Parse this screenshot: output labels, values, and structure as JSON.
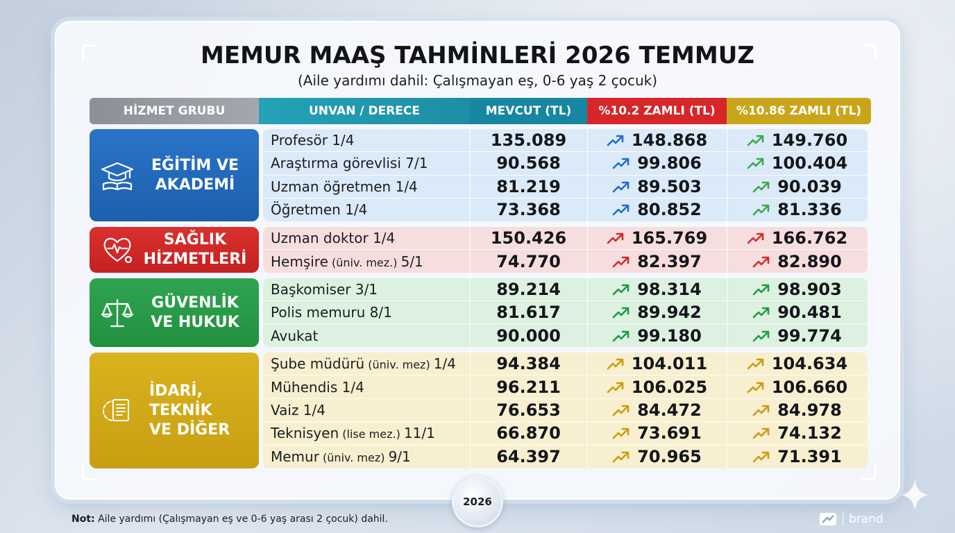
{
  "title": "MEMUR MAAŞ TAHMİNLERİ 2026 TEMMUZ",
  "subtitle": "(Aile yardımı dahil: Çalışmayan eş, 0-6 yaş 2 çocuk)",
  "headers": {
    "group": "HİZMET GRUBU",
    "title": "UNVAN / DERECE",
    "current": "MEVCUT (TL)",
    "raise1": "%10.2 ZAMLI (TL)",
    "raise2": "%10.86 ZAMLI (TL)"
  },
  "colors": {
    "education": "#1d5fae",
    "health": "#c52021",
    "security": "#21903f",
    "admin": "#c99f12"
  },
  "groups": [
    {
      "label": "EĞİTİM VE\nAKADEMİ",
      "icon": "graduation-cap-icon",
      "rows": [
        {
          "title": "Profesör 1/4",
          "current": "135.089",
          "raise1": "148.868",
          "raise2": "149.760"
        },
        {
          "title": "Araştırma görevlisi 7/1",
          "current": "90.568",
          "raise1": "99.806",
          "raise2": "100.404"
        },
        {
          "title": "Uzman öğretmen 1/4",
          "current": "81.219",
          "raise1": "89.503",
          "raise2": "90.039"
        },
        {
          "title": "Öğretmen 1/4",
          "current": "73.368",
          "raise1": "80.852",
          "raise2": "81.336"
        }
      ]
    },
    {
      "label": "SAĞLIK\nHİZMETLERİ",
      "icon": "heart-stethoscope-icon",
      "rows": [
        {
          "title": "Uzman doktor 1/4",
          "current": "150.426",
          "raise1": "165.769",
          "raise2": "166.762"
        },
        {
          "title": "Hemşire",
          "title_small": " (üniv. mez.) ",
          "title_end": "5/1",
          "current": "74.770",
          "raise1": "82.397",
          "raise2": "82.890"
        }
      ]
    },
    {
      "label": "GÜVENLİK\nVE HUKUK",
      "icon": "scales-of-justice-icon",
      "rows": [
        {
          "title": "Başkomiser 3/1",
          "current": "89.214",
          "raise1": "98.314",
          "raise2": "98.903"
        },
        {
          "title": "Polis memuru 8/1",
          "current": "81.617",
          "raise1": "89.942",
          "raise2": "90.481"
        },
        {
          "title": "Avukat",
          "current": "90.000",
          "raise1": "99.180",
          "raise2": "99.774"
        }
      ]
    },
    {
      "label": "İDARİ,\nTEKNİK\nVE DİĞER",
      "icon": "gear-document-icon",
      "rows": [
        {
          "title": "Şube müdürü",
          "title_small": " (üniv. mez) ",
          "title_end": "1/4",
          "current": "94.384",
          "raise1": "104.011",
          "raise2": "104.634"
        },
        {
          "title": "Mühendis 1/4",
          "current": "96.211",
          "raise1": "106.025",
          "raise2": "106.660"
        },
        {
          "title": "Vaiz 1/4",
          "current": "76.653",
          "raise1": "84.472",
          "raise2": "84.978"
        },
        {
          "title": "Teknisyen",
          "title_small": " (lise mez.) ",
          "title_end": "11/1",
          "current": "66.870",
          "raise1": "73.691",
          "raise2": "74.132"
        },
        {
          "title": "Memur",
          "title_small": " (üniv. mez) ",
          "title_end": "9/1",
          "current": "64.397",
          "raise1": "70.965",
          "raise2": "71.391"
        }
      ]
    }
  ],
  "clock_year": "2026",
  "note_label": "Not:",
  "note_text": " Aile yardımı (Çalışmayan eş ve 0-6 yaş arası 2 çocuk) dahil.",
  "brand": "brand"
}
